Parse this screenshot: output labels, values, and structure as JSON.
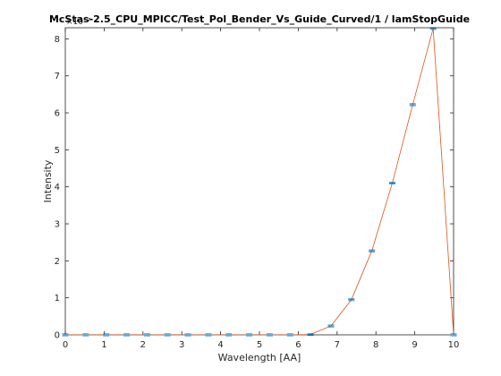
{
  "chart_data": {
    "type": "line",
    "title": "McStas-2.5_CPU_MPICC/Test_Pol_Bender_Vs_Guide_Curved/1 / lamStopGuide",
    "xlabel": "Wavelength [AA]",
    "ylabel": "Intensity",
    "y_exponent_label": "×10⁻⁷",
    "xlim": [
      0,
      10
    ],
    "ylim": [
      0,
      8.3
    ],
    "x_ticks": [
      0,
      1,
      2,
      3,
      4,
      5,
      6,
      7,
      8,
      9,
      10
    ],
    "y_ticks": [
      0,
      1,
      2,
      3,
      4,
      5,
      6,
      7,
      8
    ],
    "grid": false,
    "line_color": "#d95319",
    "marker_color": "#0072bd",
    "series": [
      {
        "x": [
          0,
          0.526,
          1.053,
          1.579,
          2.105,
          2.632,
          3.158,
          3.684,
          4.211,
          4.737,
          5.263,
          5.789,
          6.316,
          6.842,
          7.368,
          7.895,
          8.421,
          8.947,
          9.474,
          10
        ],
        "values": [
          0,
          0,
          0,
          0,
          0,
          0,
          0,
          0,
          0,
          0,
          0,
          0,
          0.01,
          0.24,
          0.95,
          2.27,
          4.1,
          6.22,
          8.28,
          0
        ]
      }
    ]
  }
}
